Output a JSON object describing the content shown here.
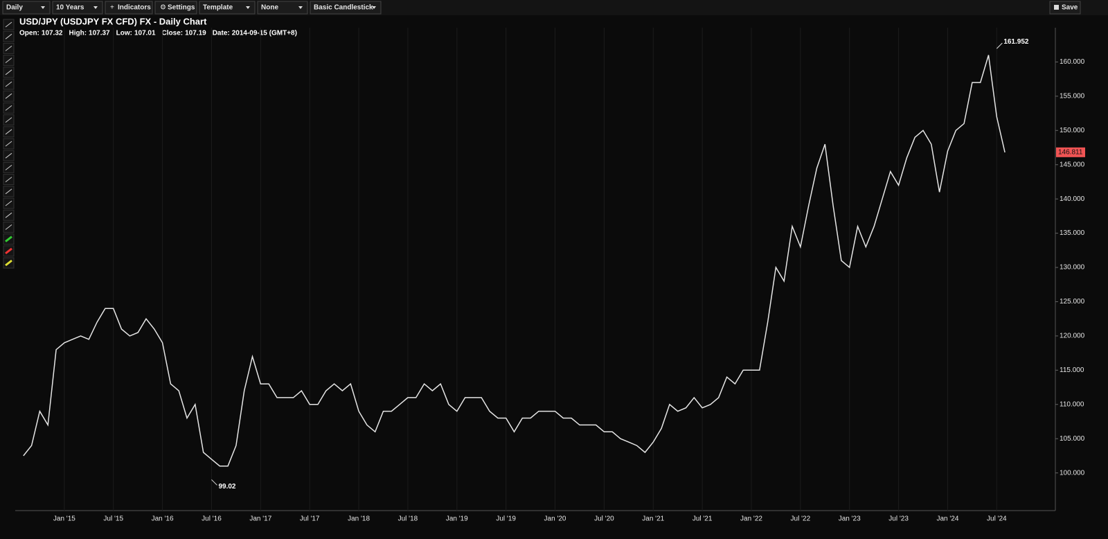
{
  "toolbar": {
    "buttons": [
      "Daily",
      "10 Years",
      "Indicators",
      "Settings",
      "Template",
      "None",
      "Basic Candlestick"
    ],
    "save": "Save"
  },
  "header": {
    "title": "USD/JPY (USDJPY FX CFD) FX - Daily Chart",
    "fields": [
      {
        "label": "Open:",
        "value": 107.32
      },
      {
        "label": "High:",
        "value": 107.37
      },
      {
        "label": "Low:",
        "value": 107.01
      },
      {
        "label": "Close:",
        "value": 107.19
      },
      {
        "label": "Date:",
        "value": "2014-09-15 (GMT+8)"
      }
    ]
  },
  "chart_data": {
    "type": "line",
    "x": [
      "2014-08",
      "2014-09",
      "2014-10",
      "2014-11",
      "2014-12",
      "2015-01",
      "2015-02",
      "2015-03",
      "2015-04",
      "2015-05",
      "2015-06",
      "2015-07",
      "2015-08",
      "2015-09",
      "2015-10",
      "2015-11",
      "2015-12",
      "2016-01",
      "2016-02",
      "2016-03",
      "2016-04",
      "2016-05",
      "2016-06",
      "2016-07",
      "2016-08",
      "2016-09",
      "2016-10",
      "2016-11",
      "2016-12",
      "2017-01",
      "2017-02",
      "2017-03",
      "2017-04",
      "2017-05",
      "2017-06",
      "2017-07",
      "2017-08",
      "2017-09",
      "2017-10",
      "2017-11",
      "2017-12",
      "2018-01",
      "2018-02",
      "2018-03",
      "2018-04",
      "2018-05",
      "2018-06",
      "2018-07",
      "2018-08",
      "2018-09",
      "2018-10",
      "2018-11",
      "2018-12",
      "2019-01",
      "2019-02",
      "2019-03",
      "2019-04",
      "2019-05",
      "2019-06",
      "2019-07",
      "2019-08",
      "2019-09",
      "2019-10",
      "2019-11",
      "2019-12",
      "2020-01",
      "2020-02",
      "2020-03",
      "2020-04",
      "2020-05",
      "2020-06",
      "2020-07",
      "2020-08",
      "2020-09",
      "2020-10",
      "2020-11",
      "2020-12",
      "2021-01",
      "2021-02",
      "2021-03",
      "2021-04",
      "2021-05",
      "2021-06",
      "2021-07",
      "2021-08",
      "2021-09",
      "2021-10",
      "2021-11",
      "2021-12",
      "2022-01",
      "2022-02",
      "2022-03",
      "2022-04",
      "2022-05",
      "2022-06",
      "2022-07",
      "2022-08",
      "2022-09",
      "2022-10",
      "2022-11",
      "2022-12",
      "2023-01",
      "2023-02",
      "2023-03",
      "2023-04",
      "2023-05",
      "2023-06",
      "2023-07",
      "2023-08",
      "2023-09",
      "2023-10",
      "2023-11",
      "2023-12",
      "2024-01",
      "2024-02",
      "2024-03",
      "2024-04",
      "2024-05",
      "2024-06",
      "2024-07",
      "2024-08"
    ],
    "series": [
      {
        "color": "#e6e6e6",
        "values": [
          102.5,
          104,
          109,
          107,
          118,
          119,
          119.5,
          120,
          119.5,
          122,
          124,
          124,
          121,
          120,
          120.5,
          122.5,
          121,
          119,
          113,
          112,
          108,
          110,
          103,
          102,
          101,
          101,
          104,
          112,
          117,
          113,
          113,
          111,
          111,
          111,
          112,
          110,
          110,
          112,
          113,
          112,
          113,
          109,
          107,
          106,
          109,
          109,
          110,
          111,
          111,
          113,
          112,
          113,
          110,
          109,
          111,
          111,
          111,
          109,
          108,
          108,
          106,
          108,
          108,
          109,
          109,
          109,
          108,
          108,
          107,
          107,
          107,
          106,
          106,
          105,
          104.5,
          104,
          103,
          104.5,
          106.5,
          110,
          109,
          109.5,
          111,
          109.5,
          110,
          111,
          114,
          113,
          115,
          115,
          115,
          122,
          130,
          128,
          136,
          133,
          139,
          144.5,
          148,
          139,
          131,
          130,
          136,
          133,
          136,
          140,
          144,
          142,
          146,
          149,
          150,
          148,
          141,
          147,
          150,
          151,
          157,
          157,
          161,
          152,
          146.8
        ]
      }
    ],
    "xlim": [
      "2014-07",
      "2025-02"
    ],
    "xticks": [
      {
        "value": "2015-01",
        "label": "Jan '15"
      },
      {
        "value": "2015-07",
        "label": "Jul '15"
      },
      {
        "value": "2016-01",
        "label": "Jan '16"
      },
      {
        "value": "2016-07",
        "label": "Jul '16"
      },
      {
        "value": "2017-01",
        "label": "Jan '17"
      },
      {
        "value": "2017-07",
        "label": "Jul '17"
      },
      {
        "value": "2018-01",
        "label": "Jan '18"
      },
      {
        "value": "2018-07",
        "label": "Jul '18"
      },
      {
        "value": "2019-01",
        "label": "Jan '19"
      },
      {
        "value": "2019-07",
        "label": "Jul '19"
      },
      {
        "value": "2020-01",
        "label": "Jan '20"
      },
      {
        "value": "2020-07",
        "label": "Jul '20"
      },
      {
        "value": "2021-01",
        "label": "Jan '21"
      },
      {
        "value": "2021-07",
        "label": "Jul '21"
      },
      {
        "value": "2022-01",
        "label": "Jan '22"
      },
      {
        "value": "2022-07",
        "label": "Jul '22"
      },
      {
        "value": "2023-01",
        "label": "Jan '23"
      },
      {
        "value": "2023-07",
        "label": "Jul '23"
      },
      {
        "value": "2024-01",
        "label": "Jan '24"
      },
      {
        "value": "2024-07",
        "label": "Jul '24"
      }
    ],
    "ylim": [
      94.5,
      165
    ],
    "yticks": [
      {
        "value": 100,
        "label": "100.000"
      },
      {
        "value": 105,
        "label": "105.000"
      },
      {
        "value": 110,
        "label": "110.000"
      },
      {
        "value": 115,
        "label": "115.000"
      },
      {
        "value": 120,
        "label": "120.000"
      },
      {
        "value": 125,
        "label": "125.000"
      },
      {
        "value": 130,
        "label": "130.000"
      },
      {
        "value": 135,
        "label": "135.000"
      },
      {
        "value": 140,
        "label": "140.000"
      },
      {
        "value": 145,
        "label": "145.000"
      },
      {
        "value": 150,
        "label": "150.000"
      },
      {
        "value": 155,
        "label": "155.000"
      },
      {
        "value": 160,
        "label": "160.000"
      }
    ],
    "grid": true,
    "annotations": [
      {
        "x": "2024-07",
        "value": 161.952
      },
      {
        "x": "2016-07",
        "value": 99.02
      }
    ],
    "last_price": 146.811,
    "last_price_color": "#f05454"
  }
}
